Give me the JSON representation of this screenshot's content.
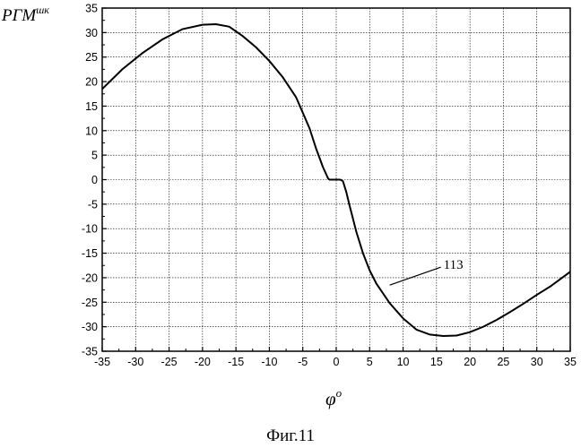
{
  "chart_data": {
    "type": "line",
    "title": "",
    "ylabel_main": "PΓM",
    "ylabel_sup": "шк",
    "xlabel_main": "φ",
    "xlabel_sup": "o",
    "caption": "Фиг.11",
    "xlim": [
      -35,
      35
    ],
    "ylim": [
      -35,
      35
    ],
    "x_ticks": [
      -35,
      -30,
      -25,
      -20,
      -15,
      -10,
      -5,
      0,
      5,
      10,
      15,
      20,
      25,
      30,
      35
    ],
    "y_ticks": [
      35,
      30,
      25,
      20,
      15,
      10,
      5,
      0,
      -5,
      -10,
      -15,
      -20,
      -25,
      -30,
      -35
    ],
    "grid": true,
    "annotation": {
      "text": "113",
      "x": 8,
      "y": -21.5
    },
    "series": [
      {
        "x": [
          -35,
          -32,
          -29,
          -26,
          -23,
          -20,
          -18,
          -16,
          -14,
          -12,
          -10,
          -8,
          -6,
          -4,
          -3,
          -2,
          -1.2,
          -1,
          0,
          0.6,
          1,
          1.5,
          2,
          3,
          4,
          5,
          6,
          8,
          10,
          12,
          14,
          16,
          18,
          20,
          22,
          24,
          26,
          28,
          30,
          32,
          35
        ],
        "y": [
          18.5,
          22.5,
          25.8,
          28.6,
          30.7,
          31.6,
          31.7,
          31.2,
          29.3,
          27.0,
          24.2,
          20.9,
          16.8,
          10.5,
          6.3,
          2.6,
          0.2,
          0,
          0,
          0,
          -0.3,
          -2.5,
          -5.3,
          -10.6,
          -15.0,
          -18.5,
          -21.2,
          -25.2,
          -28.3,
          -30.6,
          -31.6,
          -31.9,
          -31.8,
          -31.1,
          -30.0,
          -28.6,
          -27.0,
          -25.3,
          -23.5,
          -21.8,
          -18.8
        ]
      }
    ]
  }
}
